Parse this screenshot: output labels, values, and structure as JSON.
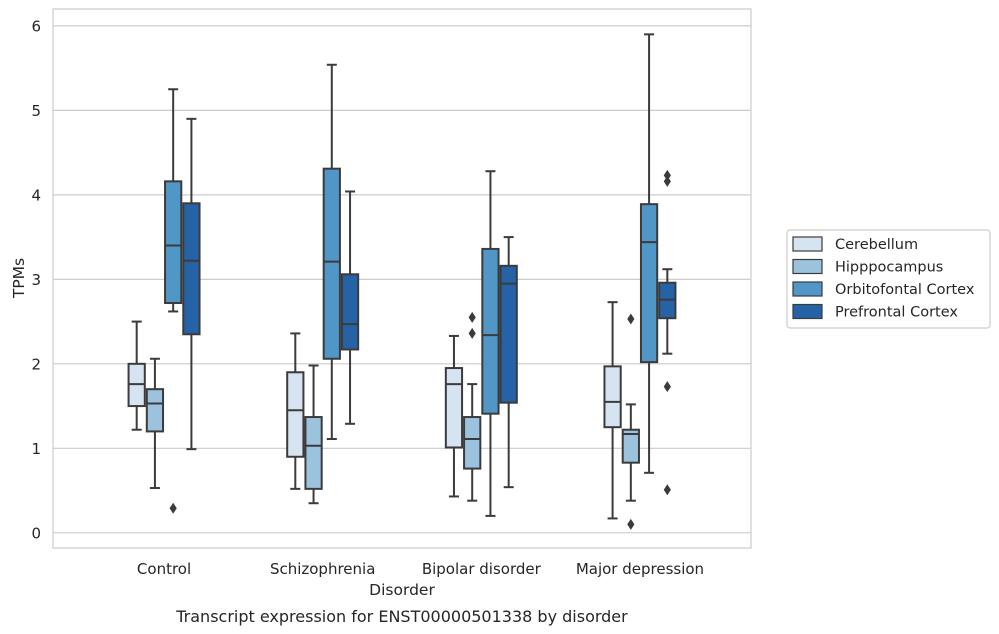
{
  "chart_data": {
    "type": "box",
    "title": "",
    "caption": "Transcript expression for ENST00000501338 by disorder",
    "xlabel": "Disorder",
    "ylabel": "TPMs",
    "ylim": [
      -0.18,
      6.2
    ],
    "yticks": [
      "0",
      "1",
      "2",
      "3",
      "4",
      "5",
      "6"
    ],
    "grid": "horizontal",
    "legend_position": "right",
    "categories": [
      "Control",
      "Schizophrenia",
      "Bipolar disorder",
      "Major depression"
    ],
    "series": [
      {
        "name": "Cerebellum",
        "color": "#d6e4f2",
        "boxes": [
          {
            "min": 1.22,
            "q1": 1.5,
            "median": 1.76,
            "q3": 2.0,
            "max": 2.5,
            "outliers": []
          },
          {
            "min": 0.52,
            "q1": 0.9,
            "median": 1.45,
            "q3": 1.9,
            "max": 2.36,
            "outliers": []
          },
          {
            "min": 0.43,
            "q1": 1.01,
            "median": 1.76,
            "q3": 1.95,
            "max": 2.33,
            "outliers": []
          },
          {
            "min": 0.17,
            "q1": 1.25,
            "median": 1.55,
            "q3": 1.97,
            "max": 2.73,
            "outliers": []
          }
        ]
      },
      {
        "name": "Hipppocampus",
        "color": "#9cc3dd",
        "boxes": [
          {
            "min": 0.53,
            "q1": 1.2,
            "median": 1.53,
            "q3": 1.7,
            "max": 2.06,
            "outliers": []
          },
          {
            "min": 0.35,
            "q1": 0.52,
            "median": 1.03,
            "q3": 1.37,
            "max": 1.98,
            "outliers": []
          },
          {
            "min": 0.38,
            "q1": 0.76,
            "median": 1.11,
            "q3": 1.37,
            "max": 1.76,
            "outliers": [
              2.36,
              2.55
            ]
          },
          {
            "min": 0.38,
            "q1": 0.83,
            "median": 1.17,
            "q3": 1.22,
            "max": 1.52,
            "outliers": [
              0.1,
              2.53
            ]
          }
        ]
      },
      {
        "name": "Orbitofontal Cortex",
        "color": "#5096c6",
        "boxes": [
          {
            "min": 2.62,
            "q1": 2.72,
            "median": 3.4,
            "q3": 4.16,
            "max": 5.25,
            "outliers": [
              0.29
            ]
          },
          {
            "min": 1.11,
            "q1": 2.06,
            "median": 3.21,
            "q3": 4.31,
            "max": 5.54,
            "outliers": []
          },
          {
            "min": 0.2,
            "q1": 1.41,
            "median": 2.34,
            "q3": 3.36,
            "max": 4.28,
            "outliers": []
          },
          {
            "min": 0.71,
            "q1": 2.02,
            "median": 3.44,
            "q3": 3.89,
            "max": 5.9,
            "outliers": []
          }
        ]
      },
      {
        "name": "Prefrontal Cortex",
        "color": "#2563a6",
        "boxes": [
          {
            "min": 0.99,
            "q1": 2.35,
            "median": 3.22,
            "q3": 3.9,
            "max": 4.9,
            "outliers": []
          },
          {
            "min": 1.29,
            "q1": 2.17,
            "median": 2.47,
            "q3": 3.06,
            "max": 4.04,
            "outliers": []
          },
          {
            "min": 0.54,
            "q1": 1.54,
            "median": 2.95,
            "q3": 3.16,
            "max": 3.5,
            "outliers": []
          },
          {
            "min": 2.12,
            "q1": 2.54,
            "median": 2.76,
            "q3": 2.96,
            "max": 3.12,
            "outliers": [
              0.51,
              1.73,
              4.16,
              4.23
            ]
          }
        ]
      }
    ]
  }
}
